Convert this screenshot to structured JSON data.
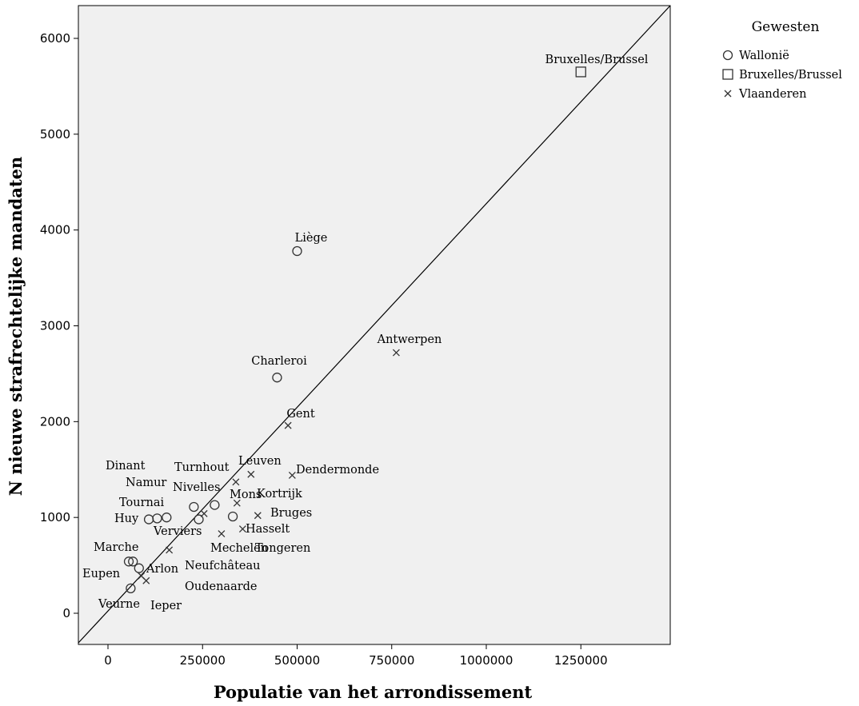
{
  "chart_data": {
    "type": "scatter",
    "xlabel": "Populatie van het arrondissement",
    "ylabel": "N nieuwe strafrechtelijke mandaten",
    "xlim": [
      -80000,
      1480000
    ],
    "ylim": [
      -330000,
      6330
    ],
    "xticks": [
      "0",
      "250000",
      "500000",
      "750000",
      "1000000",
      "1250000"
    ],
    "xtick_values": [
      0,
      250000,
      500000,
      750000,
      1000000,
      1250000
    ],
    "yticks": [
      "0",
      "1000",
      "2000",
      "3000",
      "4000",
      "5000",
      "6000"
    ],
    "ytick_values": [
      0,
      1000,
      2000,
      3000,
      4000,
      5000,
      6000
    ],
    "reference_line": "diagonal",
    "background": "#f0f0f0",
    "legend": {
      "title": "Gewesten",
      "position": "right",
      "entries": [
        {
          "name": "Wallonië",
          "marker": "circle"
        },
        {
          "name": "Bruxelles/Brussel",
          "marker": "square"
        },
        {
          "name": "Vlaanderen",
          "marker": "cross"
        }
      ]
    },
    "series": [
      {
        "name": "Wallonië",
        "marker": "circle",
        "points": [
          {
            "label": "Liège",
            "x": 500000,
            "y": 3780
          },
          {
            "label": "Charleroi",
            "x": 447000,
            "y": 2460
          },
          {
            "label": "Namur",
            "x": 227000,
            "y": 1110
          },
          {
            "label": "Nivelles",
            "x": 282000,
            "y": 1130
          },
          {
            "label": "Mons",
            "x": 330000,
            "y": 1010
          },
          {
            "label": "Tournai",
            "x": 155000,
            "y": 1000
          },
          {
            "label": "Huy",
            "x": 108000,
            "y": 980
          },
          {
            "label": "Dinant",
            "x": 130000,
            "y": 990
          },
          {
            "label": "Verviers",
            "x": 240000,
            "y": 980
          },
          {
            "label": "Marche",
            "x": 55000,
            "y": 540
          },
          {
            "label": "Neufchâteau",
            "x": 66000,
            "y": 540
          },
          {
            "label": "Arlon",
            "x": 82000,
            "y": 470
          },
          {
            "label": "Eupen",
            "x": 60000,
            "y": 260
          }
        ]
      },
      {
        "name": "Bruxelles/Brussel",
        "marker": "square",
        "points": [
          {
            "label": "Bruxelles/Brussel",
            "x": 1250000,
            "y": 5650
          }
        ]
      },
      {
        "name": "Vlaanderen",
        "marker": "cross",
        "points": [
          {
            "label": "Antwerpen",
            "x": 762000,
            "y": 2720
          },
          {
            "label": "Gent",
            "x": 476000,
            "y": 1960
          },
          {
            "label": "Leuven",
            "x": 378000,
            "y": 1450
          },
          {
            "label": "Dendermonde",
            "x": 487000,
            "y": 1440
          },
          {
            "label": "Turnhout",
            "x": 338000,
            "y": 1370
          },
          {
            "label": "Kortrijk",
            "x": 341000,
            "y": 1150
          },
          {
            "label": "Bruges",
            "x": 396000,
            "y": 1020
          },
          {
            "label": "Hasselt",
            "x": 356000,
            "y": 880
          },
          {
            "label": "Mechelen",
            "x": 300000,
            "y": 830
          },
          {
            "label": "Tongeren",
            "x": 254000,
            "y": 1040
          },
          {
            "label": "Oudenaarde",
            "x": 162000,
            "y": 660
          },
          {
            "label": "Ieper",
            "x": 101000,
            "y": 340
          },
          {
            "label": "Veurne",
            "x": 88000,
            "y": 390
          }
        ]
      }
    ]
  }
}
